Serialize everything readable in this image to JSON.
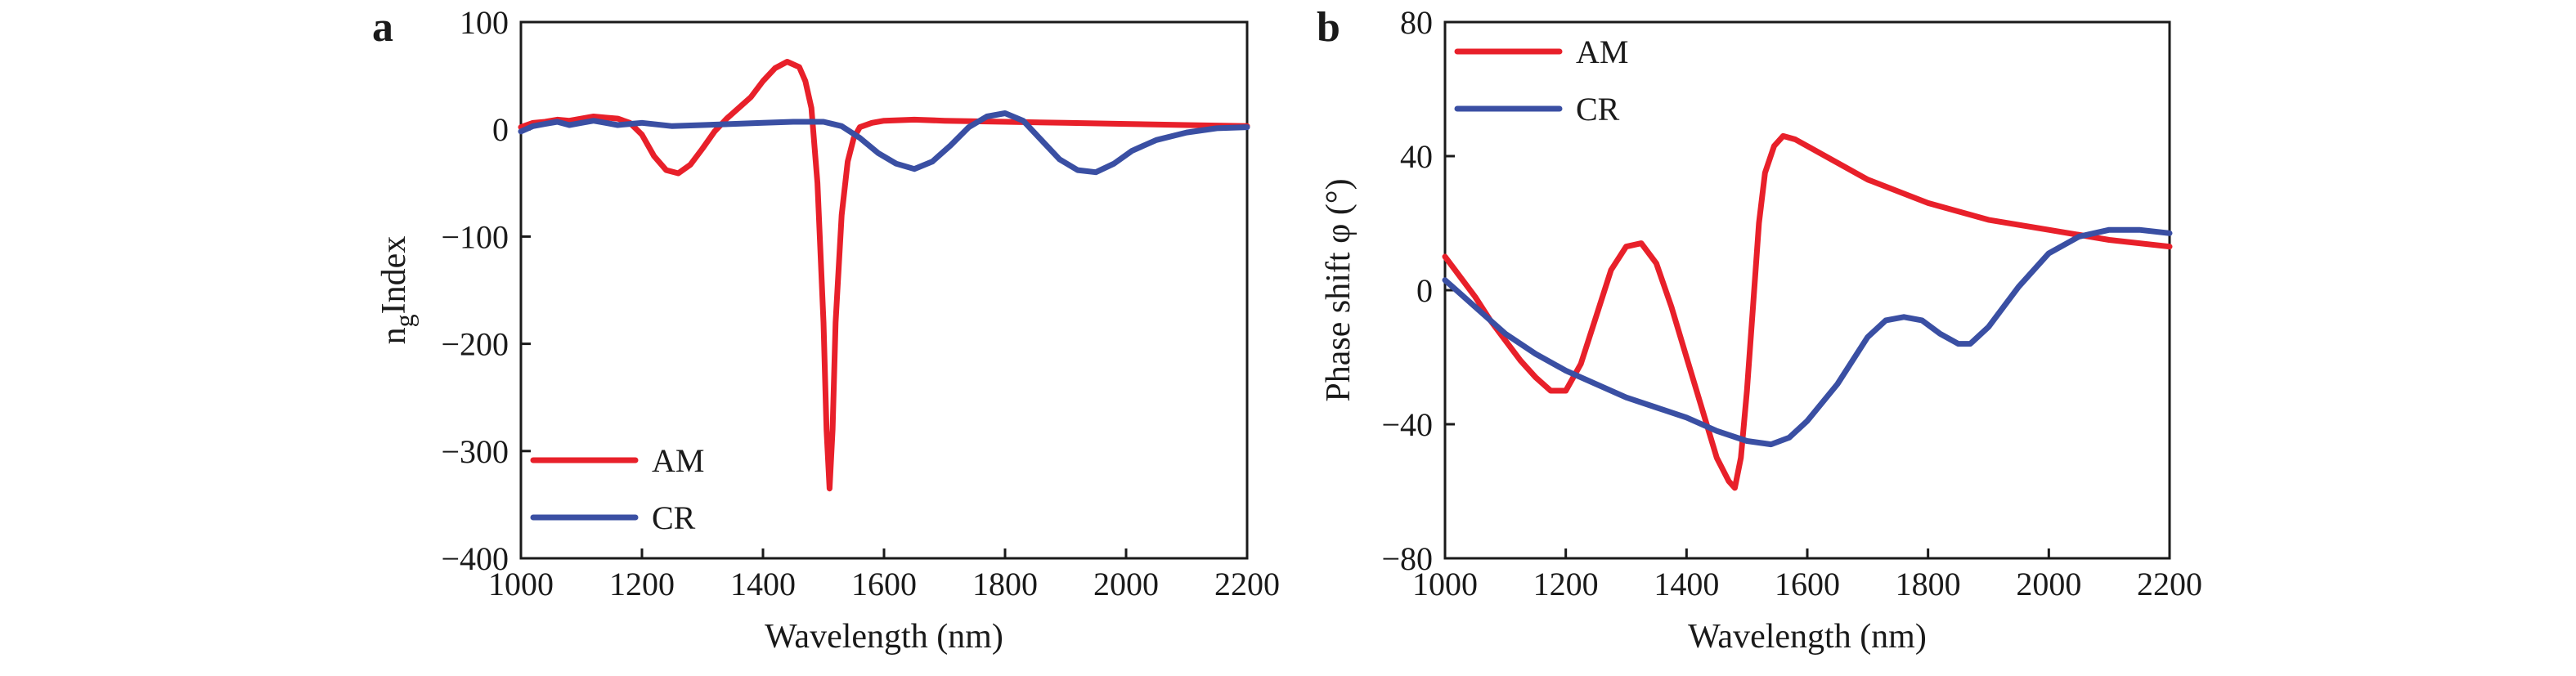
{
  "panels": [
    "a",
    "b"
  ],
  "chart_data": [
    {
      "type": "line",
      "panel": "a",
      "title": "",
      "xlabel": "Wavelength (nm)",
      "ylabel_main": "n",
      "ylabel_sub": "g",
      "ylabel_rest": "Index",
      "xlim": [
        1000,
        2200
      ],
      "ylim": [
        -400,
        100
      ],
      "xticks": [
        1000,
        1200,
        1400,
        1600,
        1800,
        2000,
        2200
      ],
      "yticks": [
        100,
        0,
        -100,
        -200,
        -300,
        -400
      ],
      "ytick_labels": [
        "100",
        "0",
        "−100",
        "−200",
        "−300",
        "−400"
      ],
      "grid": false,
      "legend_position": "bottom-left",
      "series": [
        {
          "name": "AM",
          "color": "#e8202a",
          "x": [
            1000,
            1020,
            1040,
            1060,
            1080,
            1100,
            1120,
            1140,
            1160,
            1180,
            1200,
            1220,
            1240,
            1260,
            1280,
            1300,
            1320,
            1340,
            1360,
            1380,
            1400,
            1420,
            1440,
            1460,
            1470,
            1480,
            1490,
            1500,
            1505,
            1510,
            1515,
            1520,
            1530,
            1540,
            1550,
            1560,
            1580,
            1600,
            1650,
            1700,
            1800,
            1900,
            2000,
            2100,
            2200
          ],
          "y": [
            2,
            6,
            7,
            9,
            8,
            10,
            12,
            11,
            10,
            6,
            -5,
            -25,
            -38,
            -41,
            -33,
            -18,
            -2,
            10,
            20,
            30,
            45,
            57,
            63,
            58,
            45,
            20,
            -50,
            -180,
            -280,
            -335,
            -280,
            -180,
            -80,
            -30,
            -8,
            2,
            6,
            8,
            9,
            8,
            7,
            6,
            5,
            4,
            3
          ]
        },
        {
          "name": "CR",
          "color": "#3a4fa3",
          "x": [
            1000,
            1020,
            1040,
            1060,
            1080,
            1100,
            1120,
            1140,
            1160,
            1180,
            1200,
            1250,
            1300,
            1350,
            1400,
            1450,
            1500,
            1530,
            1560,
            1590,
            1620,
            1650,
            1680,
            1710,
            1740,
            1770,
            1800,
            1830,
            1860,
            1890,
            1920,
            1950,
            1980,
            2010,
            2050,
            2100,
            2150,
            2200
          ],
          "y": [
            -2,
            3,
            5,
            7,
            4,
            6,
            8,
            6,
            4,
            5,
            6,
            3,
            4,
            5,
            6,
            7,
            7,
            3,
            -8,
            -22,
            -32,
            -37,
            -30,
            -15,
            2,
            12,
            15,
            8,
            -10,
            -28,
            -38,
            -40,
            -32,
            -20,
            -10,
            -3,
            1,
            2
          ]
        }
      ]
    },
    {
      "type": "line",
      "panel": "b",
      "title": "",
      "xlabel": "Wavelength (nm)",
      "ylabel": "Phase shift φ (°)",
      "xlim": [
        1000,
        2200
      ],
      "ylim": [
        -80,
        80
      ],
      "xticks": [
        1000,
        1200,
        1400,
        1600,
        1800,
        2000,
        2200
      ],
      "yticks": [
        80,
        40,
        0,
        -40,
        -80
      ],
      "ytick_labels": [
        "80",
        "40",
        "0",
        "−40",
        "−80"
      ],
      "grid": false,
      "legend_position": "top-left",
      "series": [
        {
          "name": "AM",
          "color": "#e8202a",
          "x": [
            1000,
            1025,
            1050,
            1075,
            1100,
            1125,
            1150,
            1175,
            1200,
            1225,
            1250,
            1275,
            1300,
            1325,
            1350,
            1375,
            1400,
            1425,
            1450,
            1470,
            1480,
            1490,
            1500,
            1510,
            1520,
            1530,
            1545,
            1560,
            1580,
            1600,
            1650,
            1700,
            1800,
            1900,
            2000,
            2100,
            2200
          ],
          "y": [
            10,
            4,
            -2,
            -9,
            -15,
            -21,
            -26,
            -30,
            -30,
            -22,
            -8,
            6,
            13,
            14,
            8,
            -5,
            -20,
            -35,
            -50,
            -57,
            -59,
            -50,
            -30,
            -5,
            20,
            35,
            43,
            46,
            45,
            43,
            38,
            33,
            26,
            21,
            18,
            15,
            13
          ]
        },
        {
          "name": "CR",
          "color": "#3a4fa3",
          "x": [
            1000,
            1050,
            1100,
            1150,
            1200,
            1250,
            1300,
            1350,
            1400,
            1450,
            1500,
            1540,
            1570,
            1600,
            1650,
            1700,
            1730,
            1760,
            1790,
            1820,
            1850,
            1870,
            1900,
            1950,
            2000,
            2050,
            2100,
            2150,
            2200
          ],
          "y": [
            3,
            -5,
            -13,
            -19,
            -24,
            -28,
            -32,
            -35,
            -38,
            -42,
            -45,
            -46,
            -44,
            -39,
            -28,
            -14,
            -9,
            -8,
            -9,
            -13,
            -16,
            -16,
            -11,
            1,
            11,
            16,
            18,
            18,
            17
          ]
        }
      ]
    }
  ]
}
